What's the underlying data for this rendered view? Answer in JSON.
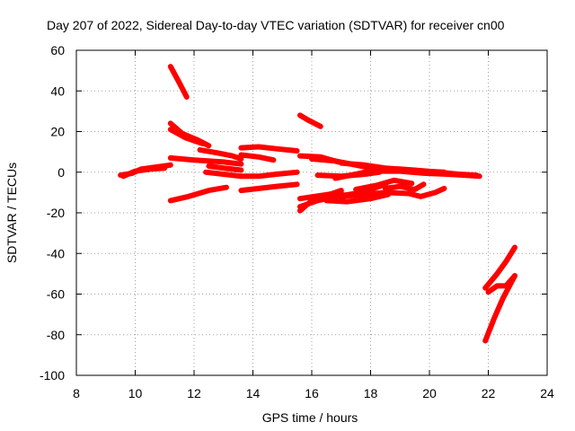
{
  "chart_data": {
    "type": "line",
    "title": "Day 207 of 2022, Sidereal Day-to-day VTEC variation (SDTVAR) for receiver cn00",
    "xlabel": "GPS time / hours",
    "ylabel": "SDTVAR / TECUs",
    "xlim": [
      8,
      24
    ],
    "ylim": [
      -100,
      60
    ],
    "xticks": [
      8,
      10,
      12,
      14,
      16,
      18,
      20,
      22,
      24
    ],
    "yticks": [
      -100,
      -80,
      -60,
      -40,
      -20,
      0,
      20,
      40,
      60
    ],
    "grid": true,
    "legend": "none",
    "colors": {
      "series": "#ff0000",
      "grid": "#a0a0a0",
      "axis": "#000000"
    },
    "series": [
      {
        "points": [
          [
            9.5,
            -1.5
          ],
          [
            9.9,
            -0.5
          ],
          [
            10.2,
            1.5
          ],
          [
            10.7,
            2.5
          ],
          [
            11.2,
            3.5
          ]
        ]
      },
      {
        "points": [
          [
            9.6,
            -2
          ],
          [
            10.0,
            0.5
          ],
          [
            10.5,
            1.5
          ],
          [
            11.0,
            2.0
          ]
        ]
      },
      {
        "points": [
          [
            11.2,
            52
          ],
          [
            11.5,
            44
          ],
          [
            11.75,
            37
          ]
        ]
      },
      {
        "points": [
          [
            11.2,
            24
          ],
          [
            11.6,
            19
          ],
          [
            12.1,
            16
          ],
          [
            12.5,
            13
          ]
        ]
      },
      {
        "points": [
          [
            11.2,
            21
          ],
          [
            11.7,
            17
          ],
          [
            12.3,
            14
          ]
        ]
      },
      {
        "points": [
          [
            11.2,
            7
          ],
          [
            12.0,
            6
          ],
          [
            13.0,
            5
          ],
          [
            13.6,
            4
          ]
        ]
      },
      {
        "points": [
          [
            11.2,
            -14
          ],
          [
            11.8,
            -12
          ],
          [
            12.5,
            -9
          ],
          [
            13.1,
            -7.5
          ]
        ]
      },
      {
        "points": [
          [
            12.2,
            11
          ],
          [
            12.8,
            9.5
          ],
          [
            13.3,
            8
          ],
          [
            13.6,
            6.5
          ]
        ]
      },
      {
        "points": [
          [
            12.5,
            3
          ],
          [
            13.0,
            2
          ],
          [
            13.6,
            1
          ]
        ]
      },
      {
        "points": [
          [
            12.4,
            0
          ],
          [
            13.0,
            -1
          ],
          [
            13.6,
            -2
          ]
        ]
      },
      {
        "points": [
          [
            13.6,
            12
          ],
          [
            14.2,
            12.5
          ],
          [
            14.8,
            11.5
          ],
          [
            15.5,
            10.5
          ]
        ]
      },
      {
        "points": [
          [
            13.6,
            8.5
          ],
          [
            14.2,
            7.5
          ],
          [
            14.7,
            6
          ]
        ]
      },
      {
        "points": [
          [
            13.6,
            -9
          ],
          [
            14.2,
            -8
          ],
          [
            14.8,
            -7
          ],
          [
            15.5,
            -6
          ]
        ]
      },
      {
        "points": [
          [
            13.6,
            -2
          ],
          [
            14.2,
            -2
          ],
          [
            14.8,
            -1
          ],
          [
            15.5,
            0
          ]
        ]
      },
      {
        "points": [
          [
            15.6,
            28
          ],
          [
            15.9,
            25.5
          ],
          [
            16.3,
            22.5
          ]
        ]
      },
      {
        "points": [
          [
            15.6,
            8
          ],
          [
            16.3,
            7.5
          ],
          [
            16.9,
            5
          ]
        ]
      },
      {
        "points": [
          [
            15.6,
            -19
          ],
          [
            16.0,
            -14
          ],
          [
            16.5,
            -11.5
          ],
          [
            17.0,
            -9
          ]
        ]
      },
      {
        "points": [
          [
            15.6,
            -17
          ],
          [
            16.2,
            -14
          ],
          [
            16.8,
            -12
          ],
          [
            17.5,
            -10.5
          ],
          [
            18.0,
            -8.5
          ],
          [
            18.5,
            -6
          ]
        ]
      },
      {
        "points": [
          [
            15.6,
            -13
          ],
          [
            16.3,
            -11.5
          ],
          [
            17.0,
            -10
          ]
        ]
      },
      {
        "points": [
          [
            16.2,
            -1.5
          ],
          [
            17.0,
            -2
          ],
          [
            17.8,
            -1
          ],
          [
            18.3,
            0
          ]
        ]
      },
      {
        "points": [
          [
            16.0,
            6.5
          ],
          [
            16.8,
            5.5
          ],
          [
            17.5,
            3.5
          ],
          [
            18.2,
            1.5
          ]
        ]
      },
      {
        "points": [
          [
            16.5,
            -14
          ],
          [
            17.2,
            -14.5
          ],
          [
            18.0,
            -13
          ],
          [
            18.6,
            -11
          ]
        ]
      },
      {
        "points": [
          [
            17.0,
            -12
          ],
          [
            17.8,
            -11
          ],
          [
            18.5,
            -10
          ],
          [
            19.3,
            -10.5
          ],
          [
            19.7,
            -12
          ],
          [
            20.2,
            -10
          ],
          [
            20.5,
            -8
          ]
        ]
      },
      {
        "points": [
          [
            17.5,
            -8.5
          ],
          [
            18.2,
            -6.5
          ],
          [
            18.8,
            -4
          ],
          [
            19.4,
            -5.5
          ]
        ]
      },
      {
        "points": [
          [
            16.8,
            -3
          ],
          [
            17.5,
            -1
          ],
          [
            18.3,
            1.5
          ],
          [
            19.0,
            1.5
          ],
          [
            19.8,
            0.5
          ],
          [
            20.5,
            0
          ]
        ]
      },
      {
        "points": [
          [
            17.0,
            4.5
          ],
          [
            17.8,
            3.5
          ],
          [
            18.5,
            2
          ],
          [
            19.5,
            1
          ],
          [
            20.3,
            0
          ],
          [
            21.0,
            -1
          ],
          [
            21.6,
            -1.5
          ]
        ]
      },
      {
        "points": [
          [
            18.2,
            0.5
          ],
          [
            19.0,
            0.5
          ],
          [
            19.8,
            -0.5
          ],
          [
            20.6,
            -1
          ],
          [
            21.2,
            -1.5
          ],
          [
            21.7,
            -2
          ]
        ]
      },
      {
        "points": [
          [
            18.5,
            -8
          ],
          [
            19.0,
            -7
          ],
          [
            19.5,
            -8.5
          ],
          [
            19.8,
            -6
          ]
        ]
      },
      {
        "points": [
          [
            21.9,
            -83
          ],
          [
            22.2,
            -72
          ],
          [
            22.5,
            -62
          ],
          [
            22.9,
            -51
          ]
        ]
      },
      {
        "points": [
          [
            21.9,
            -57
          ],
          [
            22.3,
            -50
          ],
          [
            22.6,
            -44
          ],
          [
            22.9,
            -37
          ]
        ]
      },
      {
        "points": [
          [
            22.0,
            -59
          ],
          [
            22.3,
            -56
          ],
          [
            22.6,
            -56
          ],
          [
            22.9,
            -51
          ]
        ]
      }
    ]
  }
}
